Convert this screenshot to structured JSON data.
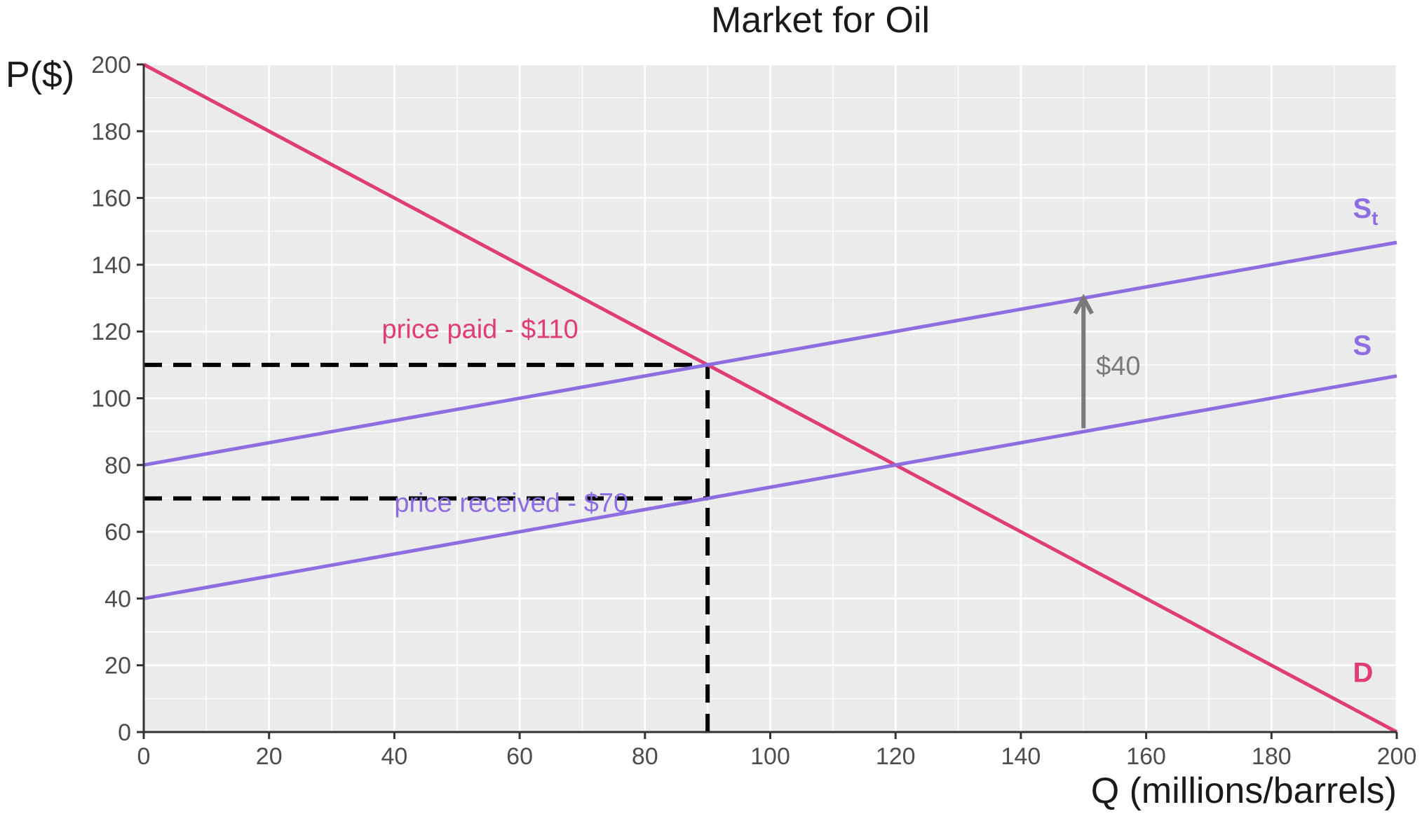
{
  "chart_data": {
    "type": "line",
    "title": "Market for Oil",
    "xlabel": "Q (millions/barrels)",
    "ylabel": "P($)",
    "xlim": [
      0,
      200
    ],
    "ylim": [
      0,
      200
    ],
    "xticks": [
      0,
      20,
      40,
      60,
      80,
      100,
      120,
      140,
      160,
      180,
      200
    ],
    "yticks": [
      0,
      20,
      40,
      60,
      80,
      100,
      120,
      140,
      160,
      180,
      200
    ],
    "grid": true,
    "series": [
      {
        "name": "D",
        "color": "#e03c78",
        "x": [
          0,
          200
        ],
        "y": [
          200,
          0
        ]
      },
      {
        "name": "S",
        "color": "#8c6ee0",
        "x": [
          0,
          200
        ],
        "y": [
          40,
          106.67
        ]
      },
      {
        "name": "St",
        "color": "#8c6ee0",
        "x": [
          0,
          200
        ],
        "y": [
          80,
          146.67
        ]
      }
    ],
    "curve_labels": [
      {
        "text": "D",
        "x": 193,
        "y": 15,
        "color": "#e03c78"
      },
      {
        "text": "S",
        "x": 193,
        "y": 113,
        "color": "#8c6ee0"
      },
      {
        "text": "S",
        "sub": "t",
        "x": 193,
        "y": 154,
        "color": "#8c6ee0"
      }
    ],
    "reference_lines": [
      {
        "kind": "h",
        "y": 110,
        "x0": 0,
        "x1": 90,
        "color": "#000000"
      },
      {
        "kind": "h",
        "y": 70,
        "x0": 0,
        "x1": 90,
        "color": "#000000"
      },
      {
        "kind": "v",
        "x": 90,
        "y0": 0,
        "y1": 110,
        "color": "#000000"
      }
    ],
    "annotations": [
      {
        "text": "price paid - $110",
        "x": 38,
        "y": 118,
        "color": "#e03c78"
      },
      {
        "text": "price received - $70",
        "x": 40,
        "y": 66,
        "color": "#8c6ee0"
      },
      {
        "text": "$40",
        "x": 152,
        "y": 107,
        "color": "#7a7a7a"
      }
    ],
    "arrow": {
      "x": 150,
      "y_from": 91,
      "y_to": 130,
      "color": "#7a7a7a"
    }
  },
  "style": {
    "panel_bg": "#ebebeb",
    "grid_color": "#ffffff",
    "axis_color": "#333333"
  }
}
